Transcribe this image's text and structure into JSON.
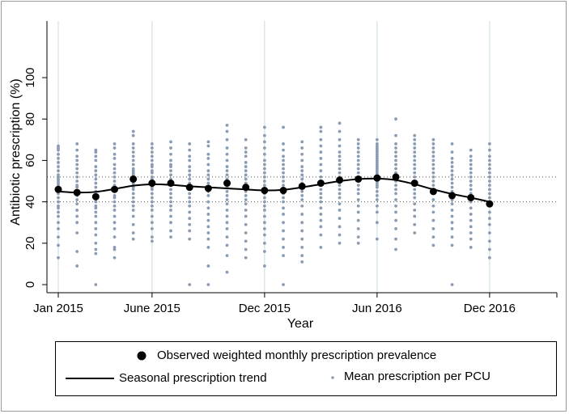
{
  "chart_data": {
    "type": "scatter",
    "title": "",
    "xlabel": "Year",
    "ylabel": "Antibiotic prescription (%)",
    "ylim": [
      0,
      100
    ],
    "yticks": [
      "0",
      "20",
      "40",
      "60",
      "80",
      "100"
    ],
    "xlim": [
      "2015-01",
      "2017-04"
    ],
    "xticks": [
      {
        "label": "Jan 2015",
        "month": "2015-01"
      },
      {
        "label": "June 2015",
        "month": "2015-06"
      },
      {
        "label": "Dec 2015",
        "month": "2015-12"
      },
      {
        "label": "Jun 2016",
        "month": "2016-06"
      },
      {
        "label": "Dec 2016",
        "month": "2016-12"
      }
    ],
    "reference_lines_y": [
      40,
      52
    ],
    "grid": "vertical lines at x ticks",
    "months": [
      "2015-01",
      "2015-02",
      "2015-03",
      "2015-04",
      "2015-05",
      "2015-06",
      "2015-07",
      "2015-08",
      "2015-09",
      "2015-10",
      "2015-11",
      "2015-12",
      "2016-01",
      "2016-02",
      "2016-03",
      "2016-04",
      "2016-05",
      "2016-06",
      "2016-07",
      "2016-08",
      "2016-09",
      "2016-10",
      "2016-11",
      "2016-12"
    ],
    "series": [
      {
        "name": "Observed weighted monthly prescription prevalence",
        "kind": "points",
        "values": [
          46,
          44.5,
          42.5,
          46,
          51,
          49,
          49,
          47,
          46.5,
          49,
          47,
          45.5,
          45.5,
          47.5,
          49,
          50.5,
          51,
          51.5,
          52,
          49,
          45,
          43,
          42,
          39
        ]
      },
      {
        "name": "Seasonal prescription trend",
        "kind": "line",
        "values": [
          45,
          44.5,
          44.8,
          46.2,
          47.8,
          48.5,
          48.2,
          47.5,
          47,
          46.5,
          46,
          45.5,
          45.8,
          47,
          48.5,
          50,
          51,
          51.2,
          50.5,
          48.5,
          46,
          43.8,
          42,
          40
        ]
      },
      {
        "name": "Mean prescription per PCU",
        "kind": "scatter",
        "values": [
          [
            13,
            19,
            23,
            27,
            30,
            33,
            35,
            37,
            38,
            40,
            42,
            44,
            45,
            46,
            47,
            48,
            49,
            50,
            51,
            52,
            53,
            55,
            57,
            59,
            61,
            63,
            65,
            66,
            67
          ],
          [
            9,
            16,
            25,
            30,
            33,
            36,
            39,
            41,
            43,
            45,
            47,
            48,
            50,
            52,
            54,
            56,
            58,
            60,
            62,
            65,
            68
          ],
          [
            0,
            15,
            17,
            20,
            24,
            27,
            30,
            33,
            35,
            37,
            38,
            40,
            41,
            43,
            45,
            47,
            49,
            51,
            53,
            55,
            57,
            60,
            62,
            64,
            65
          ],
          [
            13,
            17,
            18,
            23,
            27,
            30,
            33,
            36,
            38,
            40,
            42,
            43,
            45,
            46,
            48,
            50,
            52,
            54,
            56,
            58,
            61,
            63,
            66,
            68
          ],
          [
            22,
            25,
            29,
            33,
            36,
            38,
            40,
            42,
            44,
            46,
            47,
            48,
            49,
            50,
            51,
            52,
            53,
            54,
            55,
            56,
            58,
            60,
            62,
            64,
            66,
            68,
            72,
            74
          ],
          [
            21,
            23,
            27,
            30,
            33,
            36,
            38,
            40,
            42,
            44,
            46,
            47,
            48,
            50,
            51,
            52,
            54,
            55,
            57,
            58,
            60,
            62,
            64,
            66,
            68
          ],
          [
            23,
            26,
            30,
            33,
            36,
            38,
            40,
            42,
            44,
            46,
            48,
            50,
            51,
            53,
            55,
            57,
            58,
            60,
            63,
            66,
            69
          ],
          [
            0,
            22,
            26,
            29,
            32,
            35,
            38,
            40,
            42,
            44,
            46,
            48,
            49,
            51,
            53,
            55,
            57,
            60,
            62,
            65,
            68
          ],
          [
            0,
            9,
            18,
            22,
            25,
            28,
            31,
            34,
            37,
            40,
            43,
            45,
            47,
            49,
            51,
            53,
            55,
            58,
            61,
            63,
            67,
            69
          ],
          [
            6,
            14,
            19,
            23,
            27,
            30,
            33,
            36,
            39,
            41,
            43,
            45,
            47,
            49,
            51,
            53,
            55,
            57,
            60,
            63,
            66,
            70,
            74,
            77
          ],
          [
            13,
            17,
            21,
            25,
            29,
            33,
            36,
            39,
            41,
            43,
            45,
            47,
            49,
            51,
            53,
            55,
            57,
            59,
            62,
            64,
            66,
            70
          ],
          [
            9,
            16,
            20,
            24,
            27,
            30,
            33,
            36,
            38,
            40,
            42,
            44,
            46,
            48,
            50,
            52,
            54,
            56,
            58,
            60,
            63,
            66,
            69,
            72,
            76
          ],
          [
            0,
            14,
            18,
            22,
            26,
            30,
            34,
            37,
            40,
            42,
            44,
            46,
            48,
            50,
            52,
            54,
            56,
            58,
            60,
            62,
            65,
            68,
            76
          ],
          [
            11,
            14,
            18,
            22,
            26,
            30,
            34,
            38,
            41,
            43,
            45,
            47,
            49,
            51,
            53,
            55,
            57,
            60,
            63,
            66,
            69
          ],
          [
            18,
            24,
            28,
            31,
            34,
            37,
            40,
            42,
            44,
            46,
            48,
            50,
            52,
            55,
            58,
            61,
            64,
            67,
            70,
            74,
            76
          ],
          [
            20,
            24,
            28,
            32,
            36,
            39,
            42,
            44,
            46,
            48,
            50,
            52,
            54,
            56,
            58,
            60,
            62,
            64,
            67,
            70,
            74,
            78
          ],
          [
            20,
            23,
            27,
            31,
            35,
            38,
            41,
            44,
            46,
            48,
            50,
            52,
            54,
            56,
            58,
            60,
            62,
            64,
            66,
            68,
            70
          ],
          [
            22,
            30,
            35,
            38,
            41,
            43,
            45,
            47,
            48,
            49,
            50,
            51,
            52,
            53,
            54,
            55,
            56,
            57,
            58,
            59,
            60,
            61,
            62,
            63,
            64,
            65,
            66,
            67,
            68,
            70
          ],
          [
            17,
            22,
            27,
            31,
            35,
            38,
            41,
            44,
            46,
            48,
            50,
            52,
            54,
            56,
            58,
            60,
            62,
            64,
            66,
            68,
            72,
            80
          ],
          [
            25,
            29,
            33,
            36,
            39,
            42,
            44,
            46,
            48,
            50,
            52,
            54,
            56,
            58,
            60,
            62,
            64,
            66,
            68,
            70,
            72
          ],
          [
            19,
            23,
            27,
            31,
            35,
            38,
            41,
            44,
            46,
            48,
            50,
            52,
            54,
            56,
            58,
            60,
            62,
            64,
            66,
            68,
            70
          ],
          [
            0,
            19,
            23,
            27,
            30,
            33,
            36,
            39,
            41,
            43,
            45,
            47,
            49,
            51,
            53,
            55,
            57,
            59,
            61,
            64,
            68
          ],
          [
            18,
            22,
            25,
            28,
            31,
            34,
            37,
            40,
            42,
            44,
            46,
            48,
            50,
            52,
            54,
            56,
            58,
            60,
            62,
            65
          ],
          [
            13,
            17,
            21,
            25,
            29,
            32,
            35,
            38,
            40,
            42,
            44,
            46,
            48,
            50,
            52,
            54,
            56,
            58,
            60,
            62,
            65,
            68
          ]
        ]
      }
    ],
    "colors": {
      "observed": "#000000",
      "trend": "#000000",
      "pcu": "#8a9cb2",
      "grid": "#c7dbe3",
      "reference": "#555555"
    }
  },
  "legend": {
    "observed": "Observed weighted monthly prescription prevalence",
    "trend": "Seasonal prescription trend",
    "pcu": "Mean prescription per PCU"
  }
}
